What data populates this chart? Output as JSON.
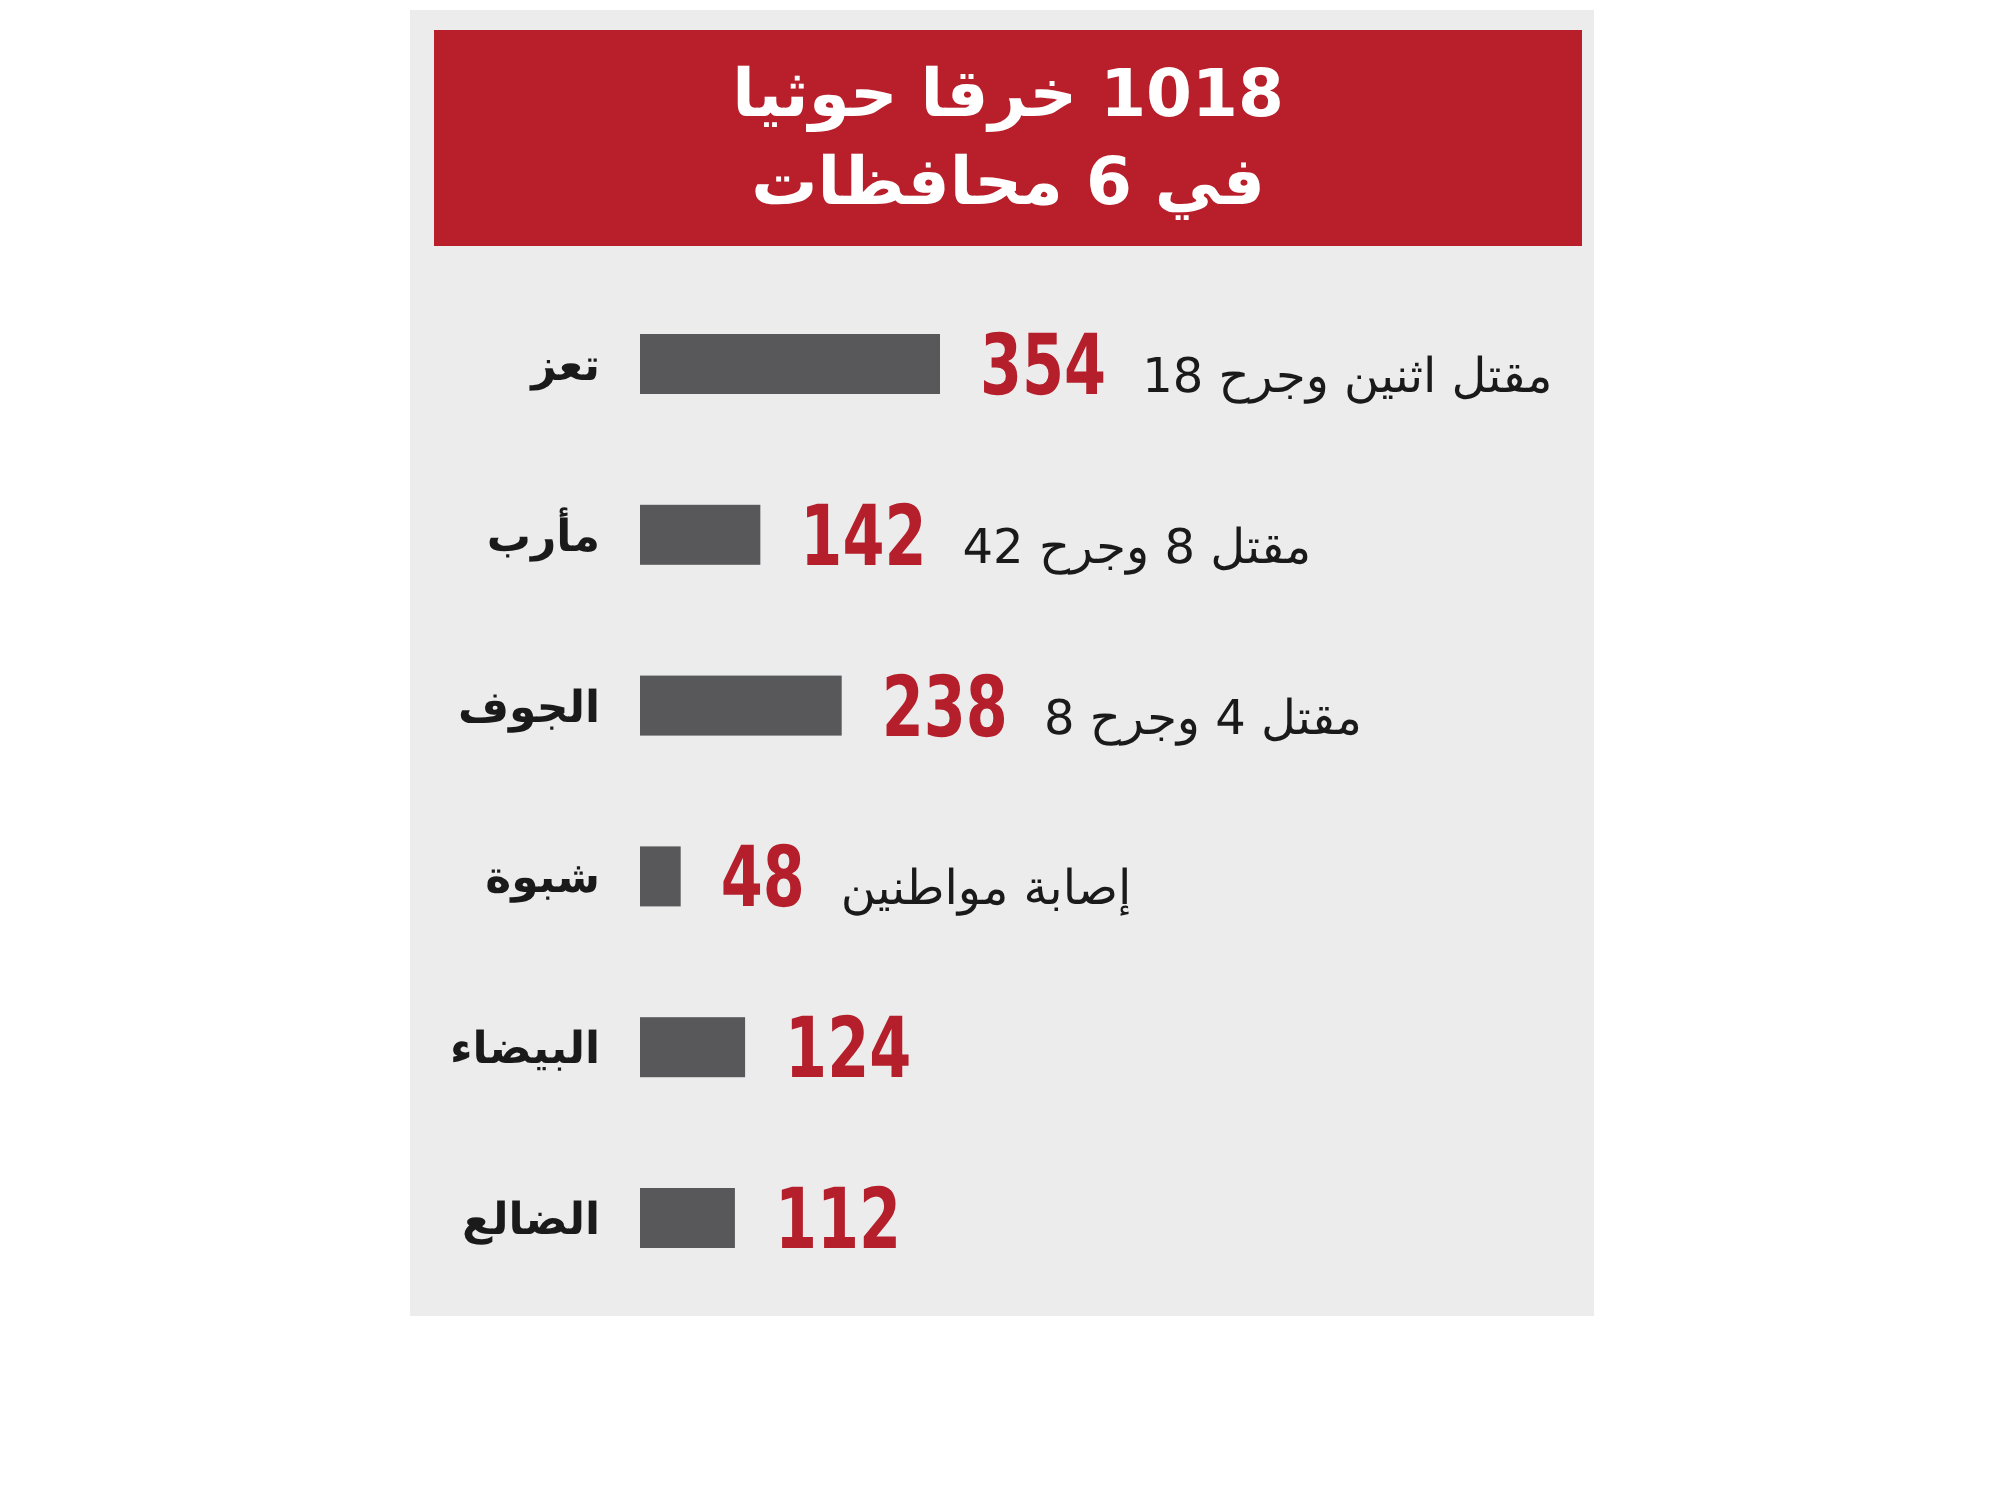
{
  "chart_data": {
    "type": "bar",
    "orientation": "horizontal",
    "title": "1018 خرقا حوثيا\nفي 6 محافظات",
    "categories": [
      "تعز",
      "مأرب",
      "الجوف",
      "شبوة",
      "البيضاء",
      "الضالع"
    ],
    "values": [
      354,
      142,
      238,
      48,
      124,
      112
    ],
    "color": "#58585a",
    "data_labels": true,
    "annotations": [
      "مقتل اثنين وجرح 18",
      "مقتل 8 وجرح 42",
      "مقتل 4 وجرح 8",
      "إصابة مواطنين"
    ]
  }
}
